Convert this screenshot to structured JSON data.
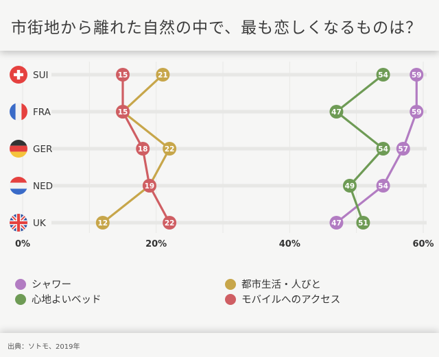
{
  "title": "市街地から離れた自然の中で、最も恋しくなるものは？",
  "source": "出典：ソトモ、2019年",
  "chart_data": {
    "type": "line",
    "xlim": [
      0,
      60
    ],
    "x_ticks": [
      "0%",
      "20%",
      "40%",
      "60%"
    ],
    "x_tick_values": [
      0,
      20,
      40,
      60
    ],
    "categories": [
      "SUI",
      "FRA",
      "GER",
      "NED",
      "UK"
    ],
    "flags": [
      "swiss-flag-icon",
      "french-flag-icon",
      "german-flag-icon",
      "dutch-flag-icon",
      "uk-flag-icon"
    ],
    "grid": true,
    "legend_position": "bottom",
    "series": [
      {
        "name": "シャワー",
        "color": "#b27cc2",
        "values": [
          59,
          59,
          57,
          54,
          47
        ]
      },
      {
        "name": "心地よいベッド",
        "color": "#6e9b55",
        "values": [
          54,
          47,
          54,
          49,
          51
        ]
      },
      {
        "name": "都市生活・人びと",
        "color": "#c7a64a",
        "values": [
          21,
          15,
          22,
          19,
          12
        ]
      },
      {
        "name": "モバイルへのアクセス",
        "color": "#cf5e63",
        "values": [
          15,
          15,
          18,
          19,
          22
        ]
      }
    ]
  }
}
